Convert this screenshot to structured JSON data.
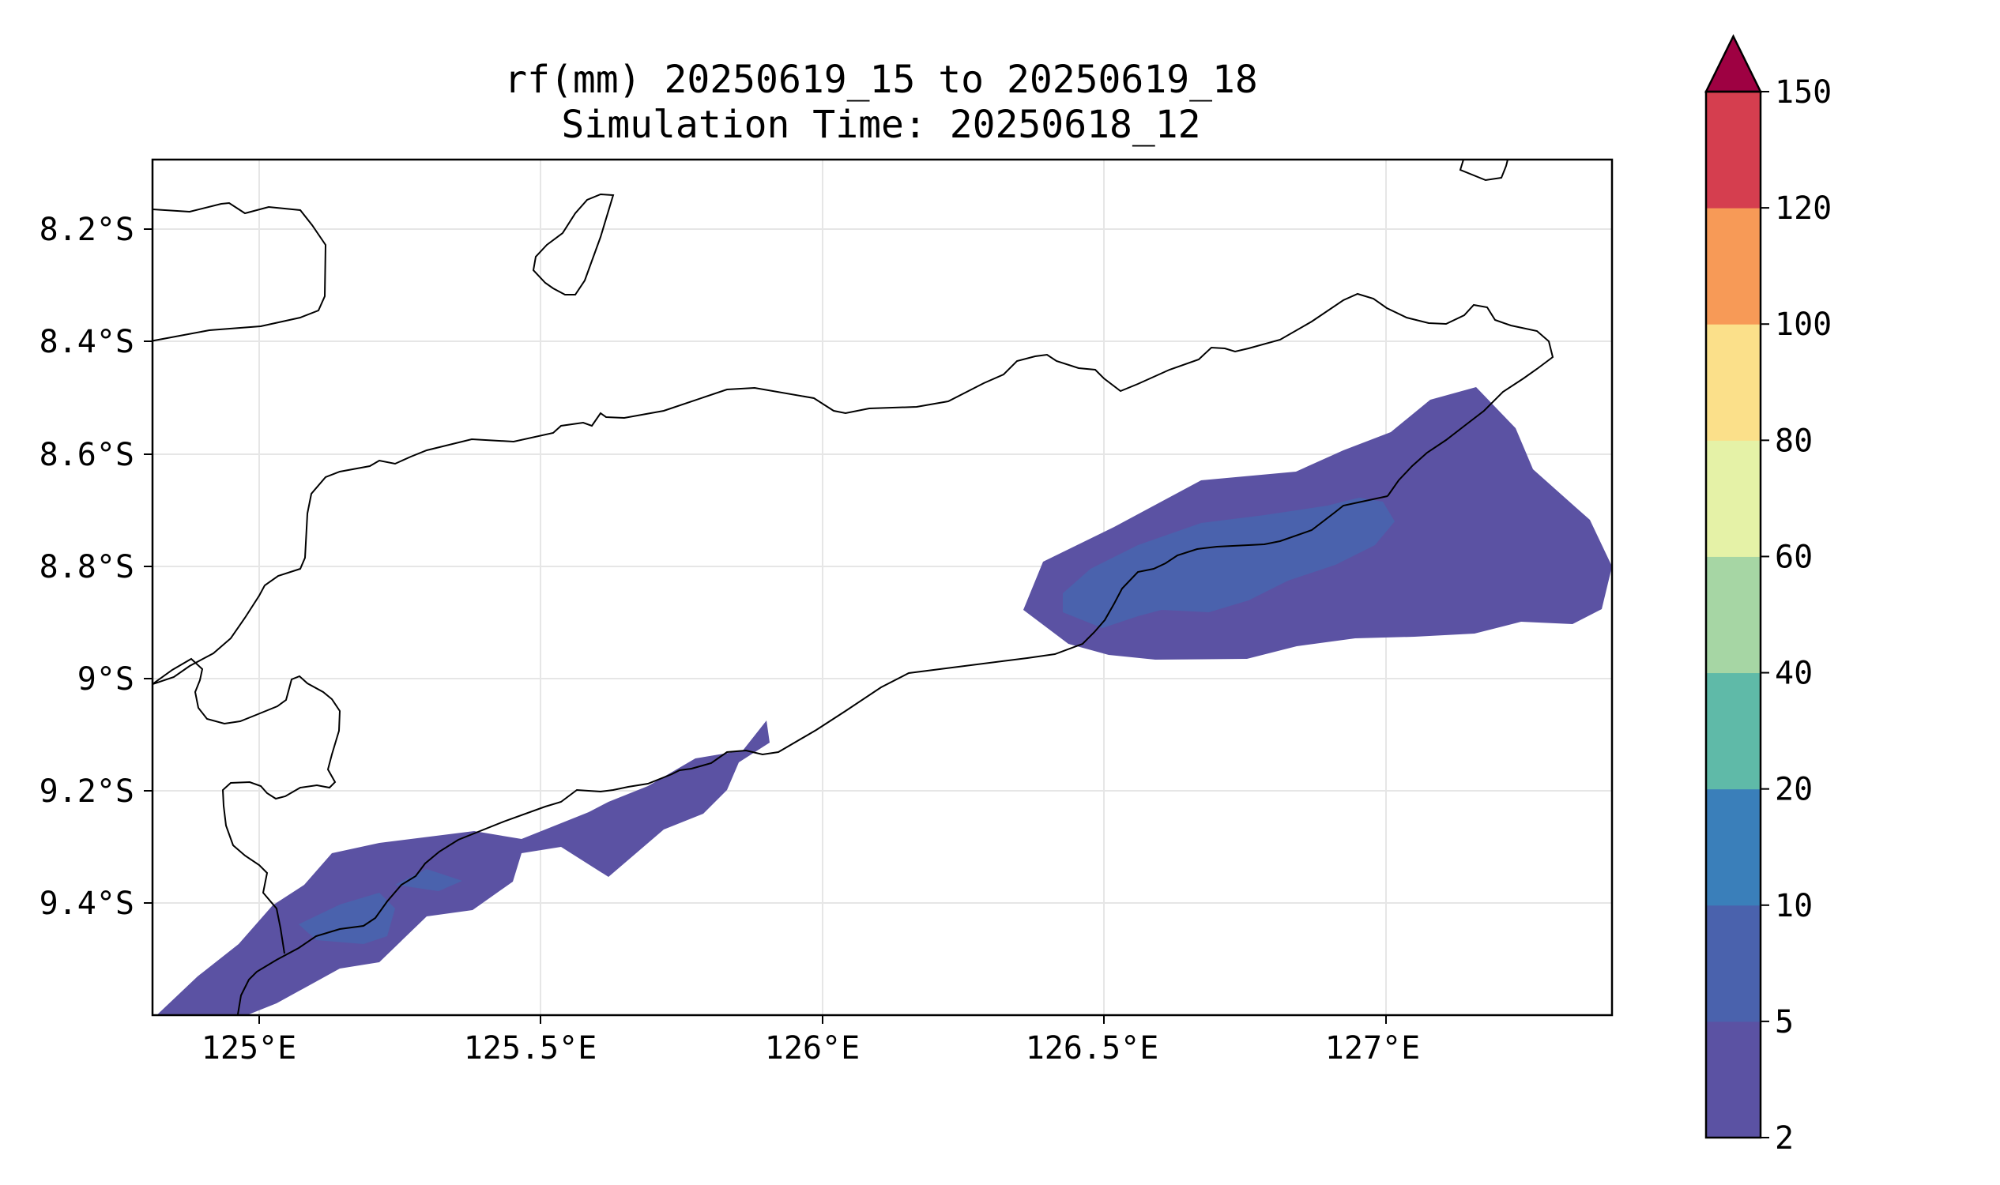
{
  "title": {
    "line1": "rf(mm) 20250619_15 to 20250619_18",
    "line2": "Simulation Time: 20250618_12"
  },
  "map": {
    "lon_range": [
      124.83,
      127.42
    ],
    "lat_range": [
      -9.6,
      -8.08
    ],
    "x_tick_labels": [
      "125°E",
      "125.5°E",
      "126°E",
      "126.5°E",
      "127°E"
    ],
    "y_tick_labels": [
      "8.2°S",
      "8.4°S",
      "8.6°S",
      "8.8°S",
      "9°S",
      "9.2°S",
      "9.4°S"
    ],
    "gridlines": true,
    "coastline_color": "#000000",
    "land_fill": "none"
  },
  "colorbar": {
    "label_values": [
      "2",
      "5",
      "10",
      "20",
      "40",
      "60",
      "80",
      "100",
      "120",
      "150"
    ],
    "colors": [
      "#5b52a3",
      "#4a62ad",
      "#3a7fba",
      "#5fbaa8",
      "#a6d6a4",
      "#e5f2a7",
      "#fbe08a",
      "#f79a57",
      "#d53e4f",
      "#9e0142"
    ],
    "extend": "max"
  },
  "legend_colors": {
    "band_2_5": "#5b52a3",
    "band_5_10": "#4a62ad"
  }
}
